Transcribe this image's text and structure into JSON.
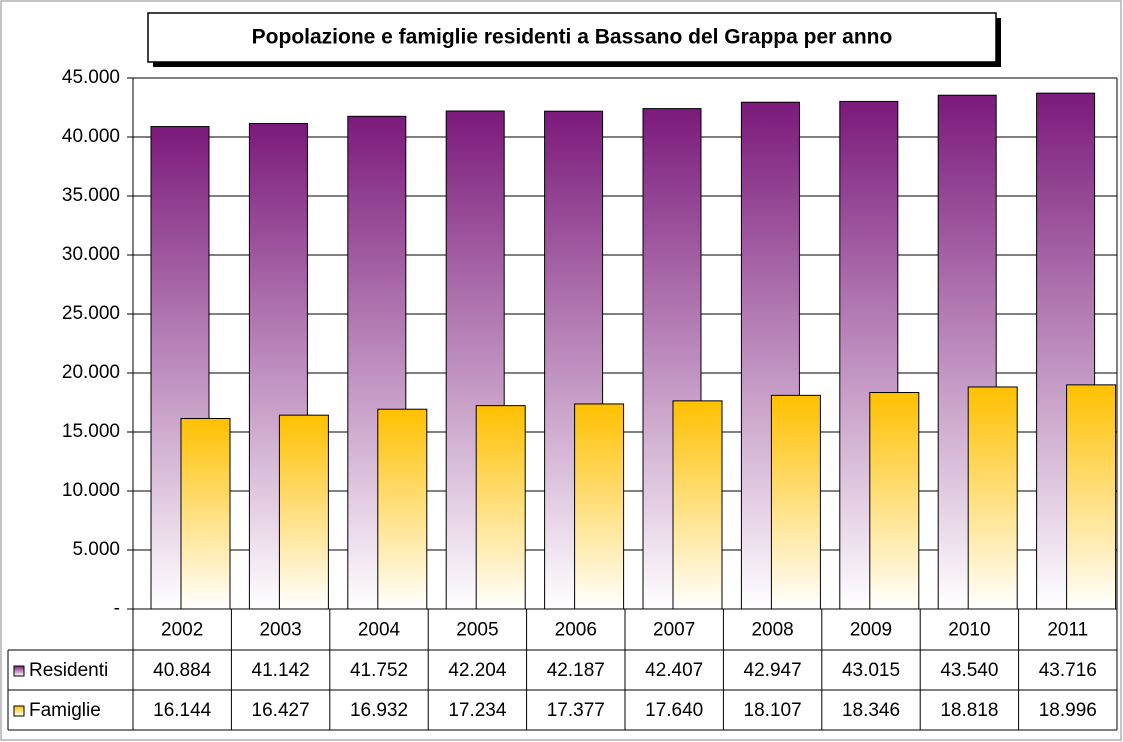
{
  "chart_data": {
    "type": "bar",
    "title": "Popolazione e famiglie residenti a Bassano del Grappa per anno",
    "categories": [
      "2002",
      "2003",
      "2004",
      "2005",
      "2006",
      "2007",
      "2008",
      "2009",
      "2010",
      "2011"
    ],
    "series": [
      {
        "name": "Residenti",
        "color": "#7b1a7b",
        "values": [
          40884,
          41142,
          41752,
          42204,
          42187,
          42407,
          42947,
          43015,
          43540,
          43716
        ],
        "value_labels": [
          "40.884",
          "41.142",
          "41.752",
          "42.204",
          "42.187",
          "42.407",
          "42.947",
          "43.015",
          "43.540",
          "43.716"
        ]
      },
      {
        "name": "Famiglie",
        "color": "#ffc000",
        "values": [
          16144,
          16427,
          16932,
          17234,
          17377,
          17640,
          18107,
          18346,
          18818,
          18996
        ],
        "value_labels": [
          "16.144",
          "16.427",
          "16.932",
          "17.234",
          "17.377",
          "17.640",
          "18.107",
          "18.346",
          "18.818",
          "18.996"
        ]
      }
    ],
    "ylim": [
      0,
      45000
    ],
    "yticks": [
      {
        "value": 0,
        "label": "-"
      },
      {
        "value": 5000,
        "label": "5.000"
      },
      {
        "value": 10000,
        "label": "10.000"
      },
      {
        "value": 15000,
        "label": "15.000"
      },
      {
        "value": 20000,
        "label": "20.000"
      },
      {
        "value": 25000,
        "label": "25.000"
      },
      {
        "value": 30000,
        "label": "30.000"
      },
      {
        "value": 35000,
        "label": "35.000"
      },
      {
        "value": 40000,
        "label": "40.000"
      },
      {
        "value": 45000,
        "label": "45.000"
      }
    ],
    "grid": true
  }
}
